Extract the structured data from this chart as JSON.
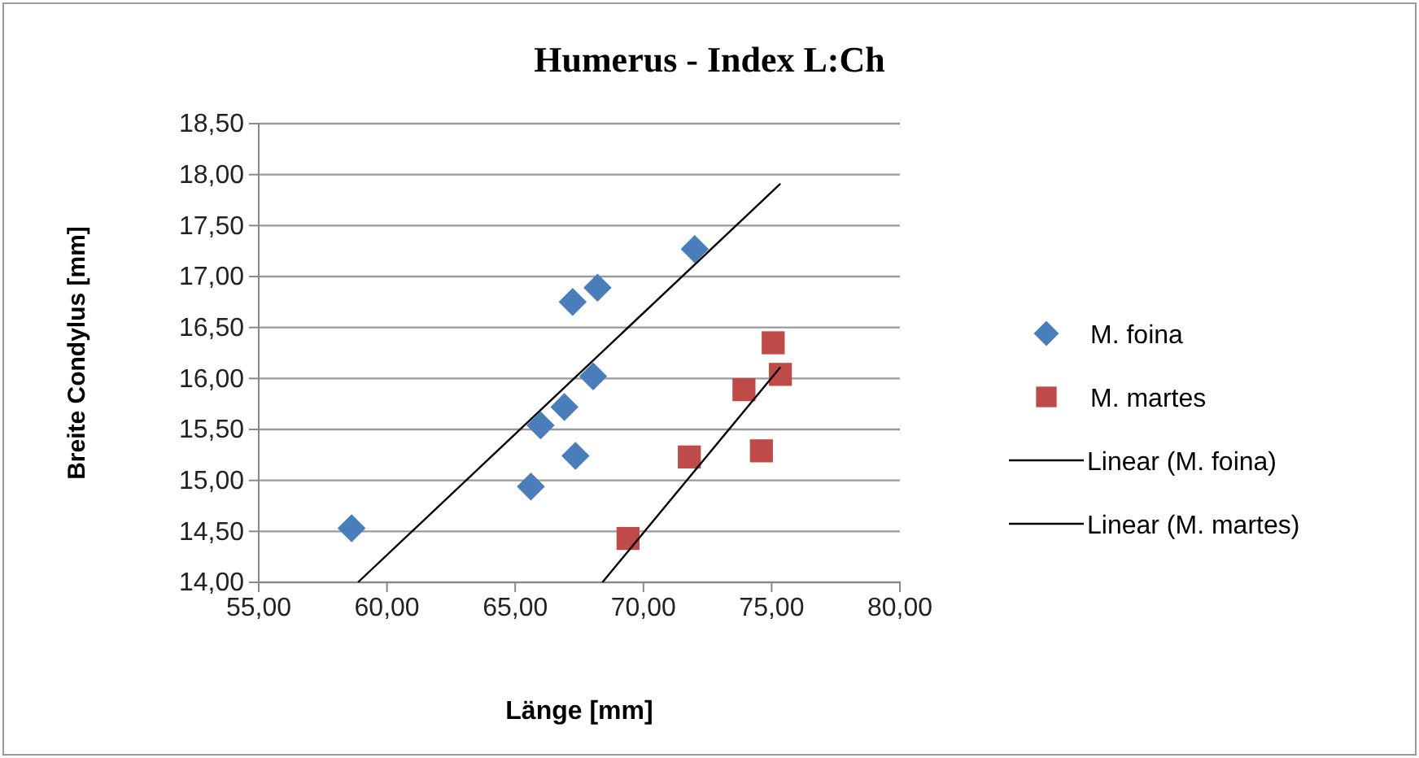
{
  "chart_data": {
    "type": "scatter",
    "title": "Humerus - Index L:Ch",
    "xlabel": "Länge [mm]",
    "ylabel": "Breite Condylus [mm]",
    "xlim": [
      55,
      80
    ],
    "xticks": [
      {
        "value": 55,
        "label": "55,00"
      },
      {
        "value": 60,
        "label": "60,00"
      },
      {
        "value": 65,
        "label": "65,00"
      },
      {
        "value": 70,
        "label": "70,00"
      },
      {
        "value": 75,
        "label": "75,00"
      },
      {
        "value": 80,
        "label": "80,00"
      }
    ],
    "ylim": [
      14,
      18.5
    ],
    "yticks": [
      {
        "value": 14,
        "label": "14,00"
      },
      {
        "value": 14.5,
        "label": "14,50"
      },
      {
        "value": 15,
        "label": "15,00"
      },
      {
        "value": 15.5,
        "label": "15,50"
      },
      {
        "value": 16,
        "label": "16,00"
      },
      {
        "value": 16.5,
        "label": "16,50"
      },
      {
        "value": 17,
        "label": "17,00"
      },
      {
        "value": 17.5,
        "label": "17,50"
      },
      {
        "value": 18,
        "label": "18,00"
      },
      {
        "value": 18.5,
        "label": "18,50"
      }
    ],
    "grid": "y",
    "legend": "right",
    "series": [
      {
        "name": "M. foina",
        "color": "#4a7ebb",
        "marker": "diamond",
        "x": [
          58.62,
          65.61,
          65.99,
          66.92,
          67.35,
          67.24,
          68.21,
          68.04,
          72.0
        ],
        "values": [
          14.53,
          14.94,
          15.54,
          15.72,
          15.24,
          16.75,
          16.89,
          16.02,
          17.27
        ]
      },
      {
        "name": "M. martes",
        "color": "#be4b48",
        "marker": "square",
        "x": [
          69.4,
          71.79,
          73.92,
          75.06,
          75.34,
          74.6
        ],
        "values": [
          14.43,
          15.23,
          15.89,
          16.35,
          16.04,
          15.29
        ]
      },
      {
        "name": "Linear (M. foina)",
        "type": "line",
        "color": "#000000",
        "marker": "none",
        "x": [
          58.87,
          75.34
        ],
        "values": [
          14.0,
          17.91
        ]
      },
      {
        "name": "Linear (M. martes)",
        "type": "line",
        "color": "#000000",
        "marker": "none",
        "x": [
          68.4,
          75.34
        ],
        "values": [
          14.0,
          16.11
        ]
      }
    ]
  }
}
